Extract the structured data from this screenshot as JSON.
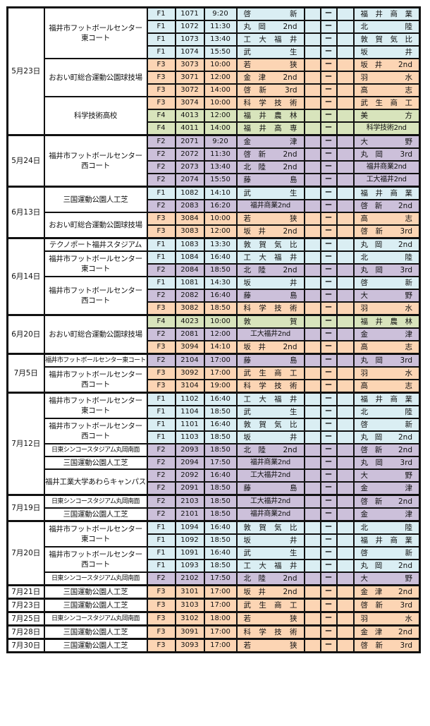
{
  "separator": "ー",
  "division_colors": {
    "F1": "#daeef3",
    "F2": "#ccc0da",
    "F3": "#fcd5b4",
    "F4": "#d8e4bc"
  },
  "groups": [
    {
      "date": "5月23日",
      "venues": [
        {
          "name": "福井市フットボールセンター\n東コート",
          "matches": [
            {
              "div": "F1",
              "no": "1071",
              "time": "9:20",
              "home": "啓新",
              "away": "福井商業"
            },
            {
              "div": "F1",
              "no": "1072",
              "time": "11:30",
              "home": "丸岡 2nd",
              "away": "北陸"
            },
            {
              "div": "F1",
              "no": "1073",
              "time": "13:40",
              "home": "工大福井",
              "away": "敦賀気比"
            },
            {
              "div": "F1",
              "no": "1074",
              "time": "15:50",
              "home": "武生",
              "away": "坂井"
            }
          ]
        },
        {
          "name": "おおい町総合運動公園球技場",
          "matches": [
            {
              "div": "F3",
              "no": "3073",
              "time": "10:00",
              "home": "若狭",
              "away": "坂井 2nd"
            },
            {
              "div": "F3",
              "no": "3071",
              "time": "12:00",
              "home": "金津 2nd",
              "away": "羽水"
            },
            {
              "div": "F3",
              "no": "3072",
              "time": "14:00",
              "home": "啓新 3rd",
              "away": "高志"
            }
          ]
        },
        {
          "name": "科学技術高校",
          "matches": [
            {
              "div": "F3",
              "no": "3074",
              "time": "10:00",
              "home": "科学技術",
              "away": "武生商工"
            },
            {
              "div": "F4",
              "no": "4013",
              "time": "12:00",
              "home": "福井農林",
              "away": "美方"
            },
            {
              "div": "F4",
              "no": "4011",
              "time": "14:00",
              "home": "福井高専",
              "away": "科学技術2nd"
            }
          ]
        }
      ]
    },
    {
      "date": "5月24日",
      "venues": [
        {
          "name": "福井市フットボールセンター\n西コート",
          "matches": [
            {
              "div": "F2",
              "no": "2071",
              "time": "9:20",
              "home": "金津",
              "away": "大野"
            },
            {
              "div": "F2",
              "no": "2072",
              "time": "11:30",
              "home": "啓新 2nd",
              "away": "丸岡 3rd"
            },
            {
              "div": "F2",
              "no": "2073",
              "time": "13:40",
              "home": "北陸 2nd",
              "away": "福井商業2nd"
            },
            {
              "div": "F2",
              "no": "2074",
              "time": "15:50",
              "home": "藤島",
              "away": "工大福井2nd"
            }
          ]
        }
      ]
    },
    {
      "date": "6月13日",
      "venues": [
        {
          "name": "三国運動公園人工芝",
          "matches": [
            {
              "div": "F1",
              "no": "1082",
              "time": "14:10",
              "home": "武生",
              "away": "福井商業"
            },
            {
              "div": "F2",
              "no": "2083",
              "time": "16:20",
              "home": "福井商業2nd",
              "away": "啓新 2nd"
            }
          ]
        },
        {
          "name": "おおい町総合運動公園球技場",
          "matches": [
            {
              "div": "F3",
              "no": "3084",
              "time": "10:00",
              "home": "若狭",
              "away": "高志"
            },
            {
              "div": "F3",
              "no": "3083",
              "time": "12:00",
              "home": "坂井 2nd",
              "away": "啓新 3rd"
            }
          ]
        }
      ]
    },
    {
      "date": "6月14日",
      "venues": [
        {
          "name": "テクノポート福井スタジアム",
          "matches": [
            {
              "div": "F1",
              "no": "1083",
              "time": "13:30",
              "home": "敦賀気比",
              "away": "丸岡 2nd"
            }
          ]
        },
        {
          "name": "福井市フットボールセンター\n東コート",
          "matches": [
            {
              "div": "F1",
              "no": "1084",
              "time": "16:40",
              "home": "工大福井",
              "away": "北陸"
            },
            {
              "div": "F2",
              "no": "2084",
              "time": "18:50",
              "home": "北陸 2nd",
              "away": "丸岡 3rd"
            }
          ]
        },
        {
          "name": "福井市フットボールセンター\n西コート",
          "matches": [
            {
              "div": "F1",
              "no": "1081",
              "time": "14:30",
              "home": "坂井",
              "away": "啓新"
            },
            {
              "div": "F2",
              "no": "2082",
              "time": "16:40",
              "home": "藤島",
              "away": "大野"
            },
            {
              "div": "F3",
              "no": "3082",
              "time": "18:50",
              "home": "科学技術",
              "away": "羽水"
            }
          ]
        }
      ]
    },
    {
      "date": "6月20日",
      "venues": [
        {
          "name": "おおい町総合運動公園球技場",
          "matches": [
            {
              "div": "F4",
              "no": "4023",
              "time": "10:00",
              "home": "敦賀",
              "away": "福井農林"
            },
            {
              "div": "F2",
              "no": "2081",
              "time": "12:00",
              "home": "工大福井2nd",
              "away": "金津"
            },
            {
              "div": "F3",
              "no": "3094",
              "time": "14:10",
              "home": "坂井 2nd",
              "away": "高志"
            }
          ]
        }
      ]
    },
    {
      "date": "7月5日",
      "venues": [
        {
          "name": "福井市フットボールセンター東コート",
          "small": true,
          "matches": [
            {
              "div": "F2",
              "no": "2104",
              "time": "17:00",
              "home": "藤島",
              "away": "丸岡 3rd"
            }
          ]
        },
        {
          "name": "福井市フットボールセンター\n西コート",
          "matches": [
            {
              "div": "F3",
              "no": "3092",
              "time": "17:00",
              "home": "武生商工",
              "away": "羽水"
            },
            {
              "div": "F3",
              "no": "3104",
              "time": "19:00",
              "home": "科学技術",
              "away": "高志"
            }
          ]
        }
      ]
    },
    {
      "date": "7月12日",
      "venues": [
        {
          "name": "福井市フットボールセンター\n東コート",
          "matches": [
            {
              "div": "F1",
              "no": "1102",
              "time": "16:40",
              "home": "工大福井",
              "away": "福井商業"
            },
            {
              "div": "F1",
              "no": "1104",
              "time": "18:50",
              "home": "武生",
              "away": "北陸"
            }
          ]
        },
        {
          "name": "福井市フットボールセンター\n西コート",
          "matches": [
            {
              "div": "F1",
              "no": "1101",
              "time": "16:40",
              "home": "敦賀気比",
              "away": "啓新"
            },
            {
              "div": "F1",
              "no": "1103",
              "time": "18:50",
              "home": "坂井",
              "away": "丸岡 2nd"
            }
          ]
        },
        {
          "name": "日東シンコースタジアム丸岡南面",
          "small": true,
          "matches": [
            {
              "div": "F2",
              "no": "2093",
              "time": "18:50",
              "home": "北陸 2nd",
              "away": "啓新 2nd"
            }
          ]
        },
        {
          "name": "三国運動公園人工芝",
          "matches": [
            {
              "div": "F2",
              "no": "2094",
              "time": "17:50",
              "home": "福井商業2nd",
              "away": "丸岡 3rd"
            }
          ]
        },
        {
          "name": "福井工業大学あわらキャンパス",
          "matches": [
            {
              "div": "F2",
              "no": "2092",
              "time": "16:40",
              "home": "工大福井2nd",
              "away": "大野"
            },
            {
              "div": "F2",
              "no": "2091",
              "time": "18:50",
              "home": "藤島",
              "away": "金津"
            }
          ]
        }
      ]
    },
    {
      "date": "7月19日",
      "venues": [
        {
          "name": "日東シンコースタジアム丸岡南面",
          "small": true,
          "matches": [
            {
              "div": "F2",
              "no": "2103",
              "time": "18:50",
              "home": "工大福井2nd",
              "away": "啓新 2nd"
            }
          ]
        },
        {
          "name": "三国運動公園人工芝",
          "matches": [
            {
              "div": "F2",
              "no": "2101",
              "time": "18:50",
              "home": "福井商業2nd",
              "away": "金津"
            }
          ]
        }
      ]
    },
    {
      "date": "7月20日",
      "venues": [
        {
          "name": "福井市フットボールセンター\n東コート",
          "matches": [
            {
              "div": "F1",
              "no": "1094",
              "time": "16:40",
              "home": "敦賀気比",
              "away": "北陸"
            },
            {
              "div": "F1",
              "no": "1092",
              "time": "18:50",
              "home": "坂井",
              "away": "福井商業"
            }
          ]
        },
        {
          "name": "福井市フットボールセンター\n西コート",
          "matches": [
            {
              "div": "F1",
              "no": "1091",
              "time": "16:40",
              "home": "武生",
              "away": "啓新"
            },
            {
              "div": "F1",
              "no": "1093",
              "time": "18:50",
              "home": "工大福井",
              "away": "丸岡 2nd"
            }
          ]
        },
        {
          "name": "日東シンコースタジアム丸岡南面",
          "small": true,
          "matches": [
            {
              "div": "F2",
              "no": "2102",
              "time": "17:50",
              "home": "北陸 2nd",
              "away": "大野"
            }
          ]
        }
      ]
    },
    {
      "date": "7月21日",
      "venues": [
        {
          "name": "三国運動公園人工芝",
          "matches": [
            {
              "div": "F3",
              "no": "3101",
              "time": "17:00",
              "home": "坂井 2nd",
              "away": "金津 2nd"
            }
          ]
        }
      ]
    },
    {
      "date": "7月23日",
      "venues": [
        {
          "name": "三国運動公園人工芝",
          "matches": [
            {
              "div": "F3",
              "no": "3103",
              "time": "17:00",
              "home": "武生商工",
              "away": "啓新 3rd"
            }
          ]
        }
      ]
    },
    {
      "date": "7月25日",
      "venues": [
        {
          "name": "日東シンコースタジアム丸岡南面",
          "small": true,
          "matches": [
            {
              "div": "F3",
              "no": "3102",
              "time": "18:00",
              "home": "若狭",
              "away": "羽水"
            }
          ]
        }
      ]
    },
    {
      "date": "7月28日",
      "venues": [
        {
          "name": "三国運動公園人工芝",
          "matches": [
            {
              "div": "F3",
              "no": "3091",
              "time": "17:00",
              "home": "科学技術",
              "away": "金津 2nd"
            }
          ]
        }
      ]
    },
    {
      "date": "7月30日",
      "venues": [
        {
          "name": "三国運動公園人工芝",
          "matches": [
            {
              "div": "F3",
              "no": "3093",
              "time": "17:00",
              "home": "若狭",
              "away": "啓新 3rd"
            }
          ]
        }
      ]
    }
  ]
}
